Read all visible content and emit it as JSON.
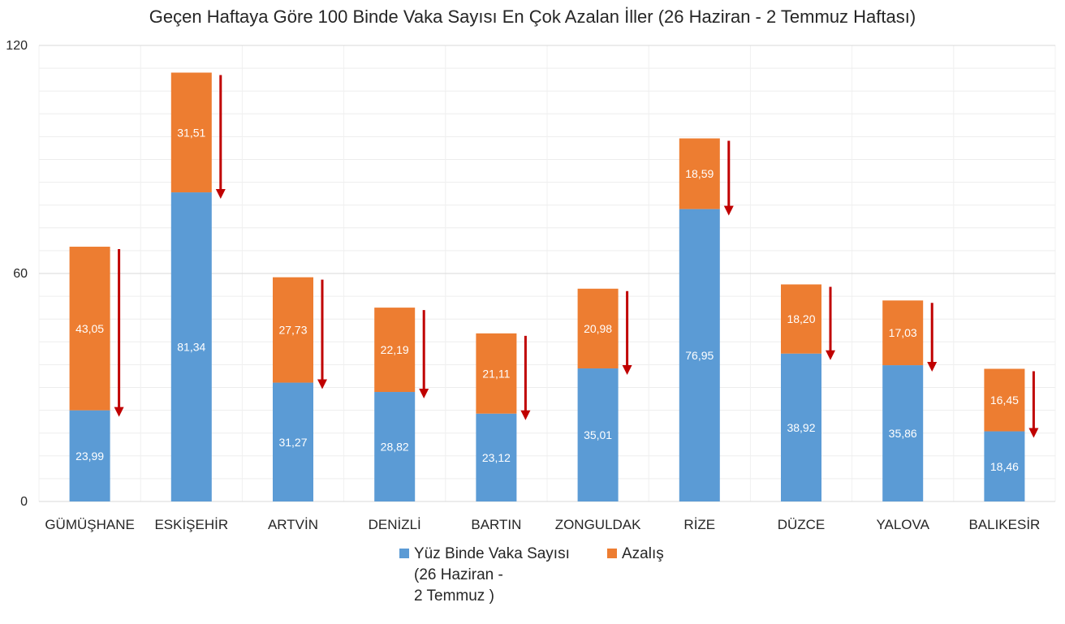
{
  "chart_data": {
    "type": "bar",
    "stacked": true,
    "title": "Geçen Haftaya Göre 100 Binde Vaka Sayısı En Çok Azalan İller (26 Haziran - 2 Temmuz Haftası)",
    "categories": [
      "GÜMÜŞHANE",
      "ESKİŞEHİR",
      "ARTVİN",
      "DENİZLİ",
      "BARTIN",
      "ZONGULDAK",
      "RİZE",
      "DÜZCE",
      "YALOVA",
      "BALIKESİR"
    ],
    "series": [
      {
        "name": "Yüz Binde Vaka Sayısı (26 Haziran - 2 Temmuz )",
        "legend_lines": [
          "Yüz Binde Vaka Sayısı",
          "(26 Haziran -",
          "2 Temmuz )"
        ],
        "color": "#5b9bd5",
        "values": [
          23.99,
          81.34,
          31.27,
          28.82,
          23.12,
          35.01,
          76.95,
          38.92,
          35.86,
          18.46
        ],
        "labels": [
          "23,99",
          "81,34",
          "31,27",
          "28,82",
          "23,12",
          "35,01",
          "76,95",
          "38,92",
          "35,86",
          "18,46"
        ]
      },
      {
        "name": "Azalış",
        "legend_lines": [
          "Azalış"
        ],
        "color": "#ed7d31",
        "values": [
          43.05,
          31.51,
          27.73,
          22.19,
          21.11,
          20.98,
          18.59,
          18.2,
          17.03,
          16.45
        ],
        "labels": [
          "43,05",
          "31,51",
          "27,73",
          "22,19",
          "21,11",
          "20,98",
          "18,59",
          "18,20",
          "17,03",
          "16,45"
        ]
      }
    ],
    "ylim": [
      0,
      120
    ],
    "yticks": [
      0,
      60,
      120
    ],
    "ytick_labels": [
      "0",
      "60",
      "120"
    ],
    "grid": true,
    "legend_position": "bottom",
    "arrow_color": "#c00000"
  }
}
